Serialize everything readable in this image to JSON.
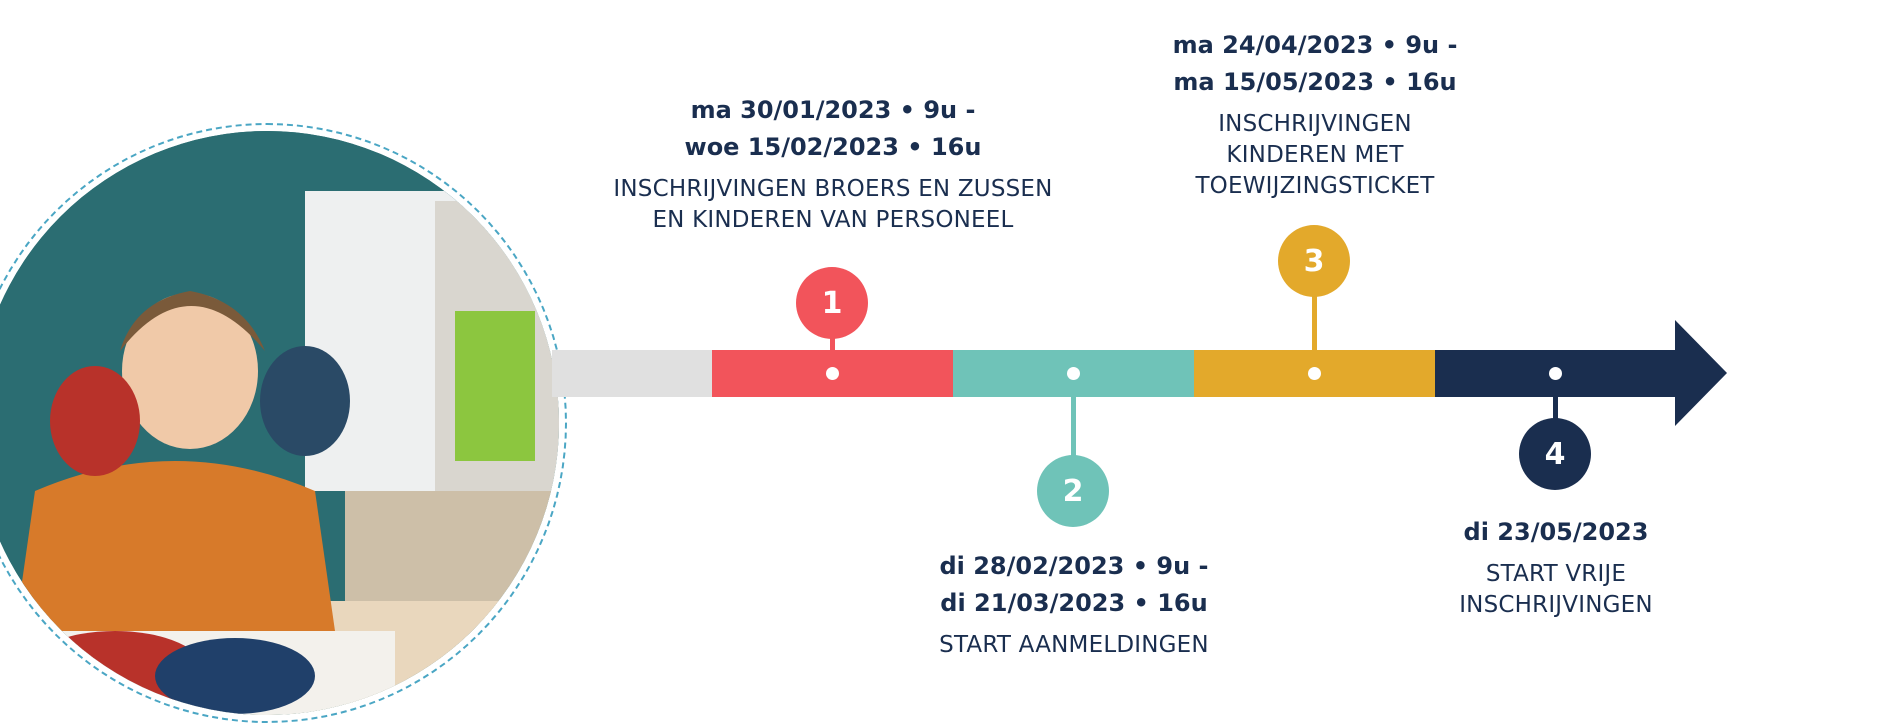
{
  "colors": {
    "grey": "#e0e0e0",
    "red": "#f2545b",
    "teal": "#6fc3b8",
    "yellow": "#e3a92b",
    "navy": "#1a2e4f",
    "text": "#1a2e4f"
  },
  "photo": {
    "content": "child-with-painted-hands-photo"
  },
  "steps": [
    {
      "number": "1",
      "date_line_1": "ma 30/01/2023 • 9u -",
      "date_line_2": "woe 15/02/2023 • 16u",
      "desc_line_1": "INSCHRIJVINGEN BROERS EN ZUSSEN",
      "desc_line_2": "EN KINDEREN VAN PERSONEEL"
    },
    {
      "number": "2",
      "date_line_1": "di 28/02/2023 • 9u -",
      "date_line_2": "di 21/03/2023 • 16u",
      "desc_line_1": "START AANMELDINGEN"
    },
    {
      "number": "3",
      "date_line_1": "ma 24/04/2023 • 9u -",
      "date_line_2": "ma 15/05/2023 • 16u",
      "desc_line_1": "INSCHRIJVINGEN",
      "desc_line_2": "KINDEREN MET",
      "desc_line_3": "TOEWIJZINGSTICKET"
    },
    {
      "number": "4",
      "date_line_1": "di 23/05/2023",
      "desc_line_1": "START VRIJE",
      "desc_line_2": "INSCHRIJVINGEN"
    }
  ]
}
